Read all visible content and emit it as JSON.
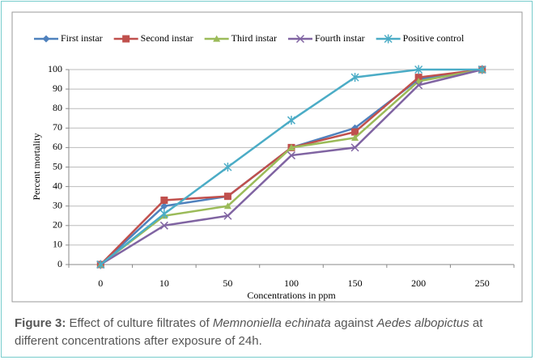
{
  "chart_data": {
    "type": "line",
    "xlabel": "Concentrations in ppm",
    "ylabel": "Percent mortality",
    "categories": [
      "0",
      "10",
      "50",
      "100",
      "150",
      "200",
      "250"
    ],
    "series": [
      {
        "name": "First instar",
        "color": "#4f81bd",
        "marker": "diamond",
        "values": [
          0,
          30,
          35,
          60,
          70,
          95,
          100
        ]
      },
      {
        "name": "Second instar",
        "color": "#c0504d",
        "marker": "square",
        "values": [
          0,
          33,
          35,
          60,
          68,
          96,
          100
        ]
      },
      {
        "name": "Third instar",
        "color": "#9bbb59",
        "marker": "triangle",
        "values": [
          0,
          25,
          30,
          60,
          65,
          94,
          100
        ]
      },
      {
        "name": "Fourth instar",
        "color": "#8064a2",
        "marker": "x",
        "values": [
          0,
          20,
          25,
          56,
          60,
          92,
          100
        ]
      },
      {
        "name": "Positive control",
        "color": "#4bacc6",
        "marker": "star",
        "values": [
          0,
          26,
          50,
          74,
          96,
          100,
          100
        ]
      }
    ],
    "ylim": [
      0,
      100
    ],
    "yticks": [
      0,
      10,
      20,
      30,
      40,
      50,
      60,
      70,
      80,
      90,
      100
    ],
    "grid": true,
    "legend": "top"
  },
  "caption": {
    "label": "Figure 3:",
    "parts": [
      " Effect of culture filtrates of ",
      "Memnoniella echinata",
      " against ",
      "Aedes albopictus",
      " at different concentrations after exposure of 24h."
    ]
  }
}
